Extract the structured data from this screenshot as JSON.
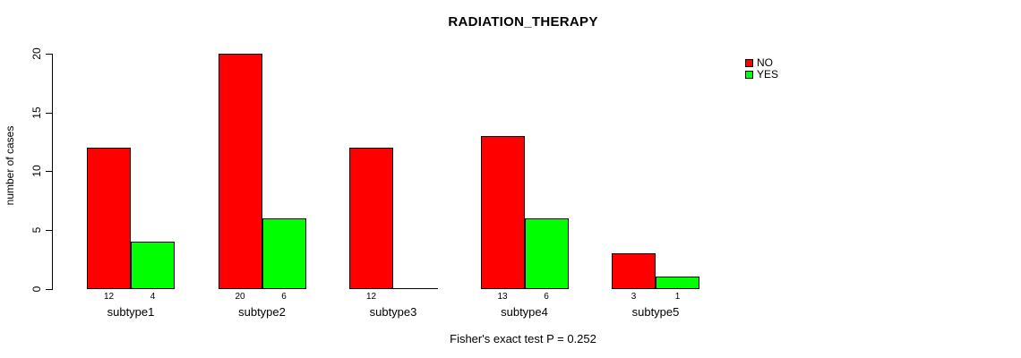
{
  "chart_data": {
    "type": "bar",
    "title": "RADIATION_THERAPY",
    "xlabel": "",
    "ylabel": "number of cases",
    "categories": [
      "subtype1",
      "subtype2",
      "subtype3",
      "subtype4",
      "subtype5"
    ],
    "series": [
      {
        "name": "NO",
        "color": "#ff0000",
        "values": [
          12,
          20,
          12,
          13,
          3
        ]
      },
      {
        "name": "YES",
        "color": "#00ff00",
        "values": [
          4,
          6,
          0,
          6,
          1
        ]
      }
    ],
    "ylim": [
      0,
      20
    ],
    "yticks": [
      0,
      5,
      10,
      15,
      20
    ],
    "grid": false,
    "bar_border_color": "#000000",
    "legend_position": "top-right",
    "note": "Fisher's exact test P = 0.252"
  }
}
